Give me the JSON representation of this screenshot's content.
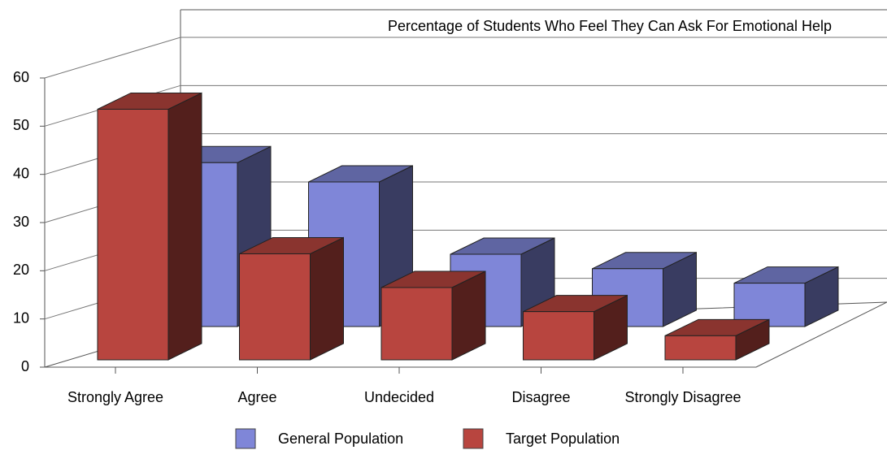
{
  "chart_data": {
    "type": "bar3d",
    "title": "Percentage of Students Who Feel They Can Ask For Emotional Help",
    "categories": [
      "Strongly Agree",
      "Agree",
      "Undecided",
      "Disagree",
      "Strongly Disagree"
    ],
    "series": [
      {
        "name": "General Population",
        "color": "#7f86d8",
        "values": [
          34,
          30,
          15,
          12,
          9
        ]
      },
      {
        "name": "Target Population",
        "color": "#b8453f",
        "values": [
          52,
          22,
          15,
          10,
          5
        ]
      }
    ],
    "ylim": [
      0,
      60
    ],
    "yticks": [
      0,
      10,
      20,
      30,
      40,
      50,
      60
    ],
    "grid": true
  }
}
